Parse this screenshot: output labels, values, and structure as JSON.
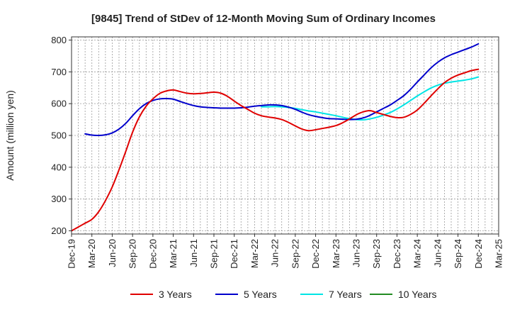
{
  "chart_data": {
    "type": "line",
    "title": "[9845]  Trend of StDev of 12-Month Moving Sum of Ordinary Incomes",
    "xlabel": "",
    "ylabel": "Amount (million yen)",
    "ylim": [
      190,
      810
    ],
    "yticks": [
      200,
      300,
      400,
      500,
      600,
      700,
      800
    ],
    "xlim": [
      0,
      63
    ],
    "xticks": [
      {
        "label": "Dec-19",
        "x": 0
      },
      {
        "label": "Mar-20",
        "x": 3
      },
      {
        "label": "Jun-20",
        "x": 6
      },
      {
        "label": "Sep-20",
        "x": 9
      },
      {
        "label": "Dec-20",
        "x": 12
      },
      {
        "label": "Mar-21",
        "x": 15
      },
      {
        "label": "Jun-21",
        "x": 18
      },
      {
        "label": "Sep-21",
        "x": 21
      },
      {
        "label": "Dec-21",
        "x": 24
      },
      {
        "label": "Mar-22",
        "x": 27
      },
      {
        "label": "Jun-22",
        "x": 30
      },
      {
        "label": "Sep-22",
        "x": 33
      },
      {
        "label": "Dec-22",
        "x": 36
      },
      {
        "label": "Mar-23",
        "x": 39
      },
      {
        "label": "Jun-23",
        "x": 42
      },
      {
        "label": "Sep-23",
        "x": 45
      },
      {
        "label": "Dec-23",
        "x": 48
      },
      {
        "label": "Mar-24",
        "x": 51
      },
      {
        "label": "Jun-24",
        "x": 54
      },
      {
        "label": "Sep-24",
        "x": 57
      },
      {
        "label": "Dec-24",
        "x": 60
      },
      {
        "label": "Mar-25",
        "x": 63
      }
    ],
    "grid": true,
    "legend_position": "bottom",
    "series": [
      {
        "name": "3 Years",
        "color": "#e00000",
        "points": [
          [
            0,
            200
          ],
          [
            1,
            212
          ],
          [
            2,
            224
          ],
          [
            3,
            236
          ],
          [
            4,
            260
          ],
          [
            5,
            295
          ],
          [
            6,
            338
          ],
          [
            7,
            392
          ],
          [
            8,
            450
          ],
          [
            9,
            510
          ],
          [
            10,
            558
          ],
          [
            11,
            592
          ],
          [
            12,
            615
          ],
          [
            13,
            632
          ],
          [
            14,
            640
          ],
          [
            15,
            643
          ],
          [
            16,
            638
          ],
          [
            17,
            633
          ],
          [
            18,
            631
          ],
          [
            19,
            632
          ],
          [
            20,
            634
          ],
          [
            21,
            636
          ],
          [
            22,
            633
          ],
          [
            23,
            623
          ],
          [
            24,
            608
          ],
          [
            25,
            594
          ],
          [
            26,
            582
          ],
          [
            27,
            570
          ],
          [
            28,
            562
          ],
          [
            29,
            558
          ],
          [
            30,
            555
          ],
          [
            31,
            550
          ],
          [
            32,
            541
          ],
          [
            33,
            530
          ],
          [
            34,
            520
          ],
          [
            35,
            515
          ],
          [
            36,
            518
          ],
          [
            37,
            522
          ],
          [
            38,
            526
          ],
          [
            39,
            531
          ],
          [
            40,
            540
          ],
          [
            41,
            552
          ],
          [
            42,
            565
          ],
          [
            43,
            574
          ],
          [
            44,
            578
          ],
          [
            45,
            572
          ],
          [
            46,
            566
          ],
          [
            47,
            560
          ],
          [
            48,
            556
          ],
          [
            49,
            557
          ],
          [
            50,
            566
          ],
          [
            51,
            580
          ],
          [
            52,
            601
          ],
          [
            53,
            624
          ],
          [
            54,
            646
          ],
          [
            55,
            666
          ],
          [
            56,
            680
          ],
          [
            57,
            690
          ],
          [
            58,
            697
          ],
          [
            59,
            704
          ],
          [
            60,
            708
          ]
        ]
      },
      {
        "name": "5 Years",
        "color": "#0000cc",
        "points": [
          [
            2,
            505
          ],
          [
            3,
            501
          ],
          [
            4,
            500
          ],
          [
            5,
            502
          ],
          [
            6,
            508
          ],
          [
            7,
            520
          ],
          [
            8,
            538
          ],
          [
            9,
            562
          ],
          [
            10,
            584
          ],
          [
            11,
            600
          ],
          [
            12,
            610
          ],
          [
            13,
            615
          ],
          [
            14,
            616
          ],
          [
            15,
            614
          ],
          [
            16,
            607
          ],
          [
            17,
            600
          ],
          [
            18,
            594
          ],
          [
            19,
            590
          ],
          [
            20,
            588
          ],
          [
            21,
            587
          ],
          [
            22,
            586
          ],
          [
            23,
            586
          ],
          [
            24,
            586
          ],
          [
            25,
            587
          ],
          [
            26,
            589
          ],
          [
            27,
            592
          ],
          [
            28,
            594
          ],
          [
            29,
            596
          ],
          [
            30,
            596
          ],
          [
            31,
            594
          ],
          [
            32,
            589
          ],
          [
            33,
            582
          ],
          [
            34,
            573
          ],
          [
            35,
            565
          ],
          [
            36,
            560
          ],
          [
            37,
            556
          ],
          [
            38,
            553
          ],
          [
            39,
            552
          ],
          [
            40,
            551
          ],
          [
            41,
            550
          ],
          [
            42,
            551
          ],
          [
            43,
            555
          ],
          [
            44,
            563
          ],
          [
            45,
            574
          ],
          [
            46,
            585
          ],
          [
            47,
            596
          ],
          [
            48,
            610
          ],
          [
            49,
            625
          ],
          [
            50,
            645
          ],
          [
            51,
            668
          ],
          [
            52,
            690
          ],
          [
            53,
            712
          ],
          [
            54,
            730
          ],
          [
            55,
            744
          ],
          [
            56,
            754
          ],
          [
            57,
            762
          ],
          [
            58,
            770
          ],
          [
            59,
            778
          ],
          [
            60,
            788
          ]
        ]
      },
      {
        "name": "7 Years",
        "color": "#00e5e5",
        "points": [
          [
            28,
            590
          ],
          [
            29,
            590
          ],
          [
            30,
            591
          ],
          [
            31,
            590
          ],
          [
            32,
            588
          ],
          [
            33,
            585
          ],
          [
            34,
            581
          ],
          [
            35,
            577
          ],
          [
            36,
            574
          ],
          [
            37,
            570
          ],
          [
            38,
            566
          ],
          [
            39,
            562
          ],
          [
            40,
            557
          ],
          [
            41,
            553
          ],
          [
            42,
            550
          ],
          [
            43,
            549
          ],
          [
            44,
            552
          ],
          [
            45,
            557
          ],
          [
            46,
            564
          ],
          [
            47,
            572
          ],
          [
            48,
            583
          ],
          [
            49,
            596
          ],
          [
            50,
            610
          ],
          [
            51,
            624
          ],
          [
            52,
            637
          ],
          [
            53,
            649
          ],
          [
            54,
            658
          ],
          [
            55,
            664
          ],
          [
            56,
            668
          ],
          [
            57,
            671
          ],
          [
            58,
            674
          ],
          [
            59,
            678
          ],
          [
            60,
            684
          ]
        ]
      },
      {
        "name": "10 Years",
        "color": "#228b22",
        "points": []
      }
    ]
  }
}
